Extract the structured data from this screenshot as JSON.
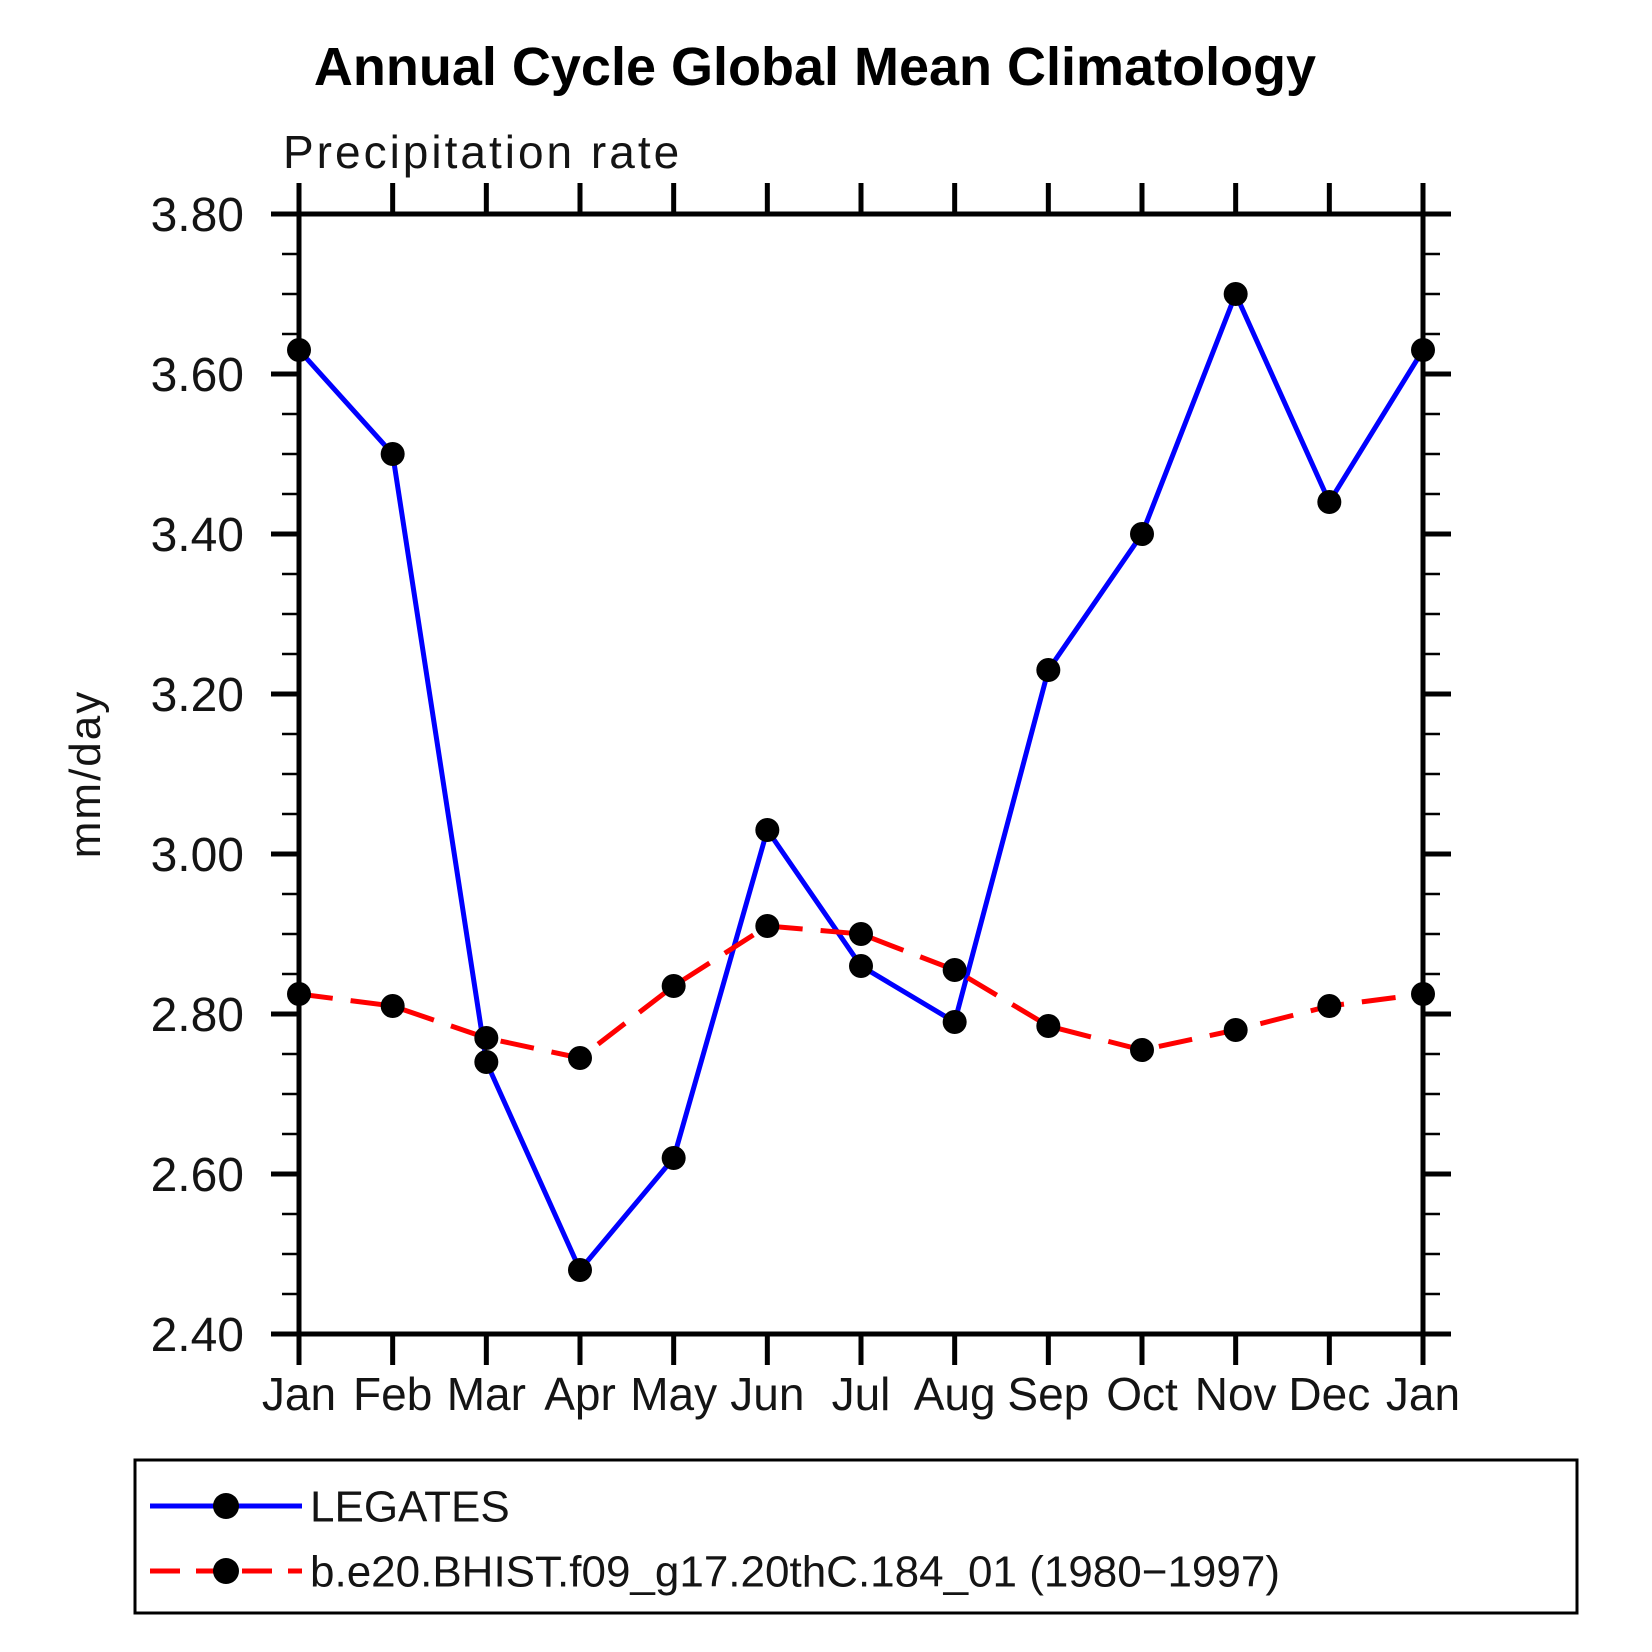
{
  "chart_data": {
    "type": "line",
    "title": "Annual Cycle Global Mean Climatology",
    "subtitle": "Precipitation rate",
    "ylabel": "mm/day",
    "categories": [
      "Jan",
      "Feb",
      "Mar",
      "Apr",
      "May",
      "Jun",
      "Jul",
      "Aug",
      "Sep",
      "Oct",
      "Nov",
      "Dec",
      "Jan"
    ],
    "series": [
      {
        "name": "LEGATES",
        "color": "#0000ff",
        "line_style": "solid",
        "marker": "black-dot",
        "values": [
          3.63,
          3.5,
          2.74,
          2.48,
          2.62,
          3.03,
          2.86,
          2.79,
          3.23,
          3.4,
          3.7,
          3.44,
          3.63
        ]
      },
      {
        "name": "b.e20.BHIST.f09_g17.20thC.184_01 (1980−1997)",
        "color": "#ff0000",
        "line_style": "dashed",
        "marker": "black-dot",
        "values": [
          2.825,
          2.81,
          2.77,
          2.745,
          2.835,
          2.91,
          2.9,
          2.855,
          2.785,
          2.755,
          2.78,
          2.81,
          2.825
        ]
      }
    ],
    "marker_color": "#000000",
    "ylim": [
      2.4,
      3.8
    ],
    "ytick_interval": 0.2,
    "yminor_interval": 0.05,
    "yticks": [
      "2.40",
      "2.60",
      "2.80",
      "3.00",
      "3.20",
      "3.40",
      "3.60",
      "3.80"
    ],
    "xlabel": "",
    "grid": false,
    "legend_position": "bottom"
  }
}
